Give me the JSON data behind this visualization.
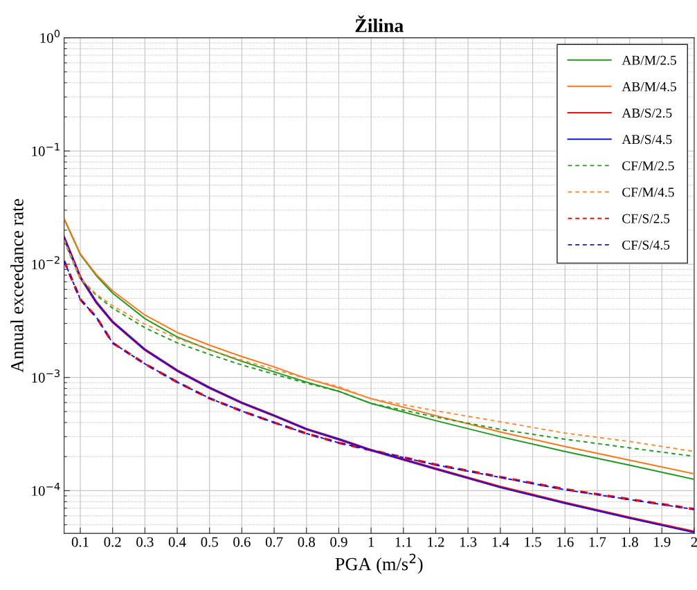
{
  "chart_data": {
    "type": "line",
    "title": "Žilina",
    "xlabel": "PGA (m/s$^{2}$)",
    "ylabel": "Annual exceedance rate",
    "log": "y",
    "grid": true,
    "legend": "top right",
    "xlim": [
      0.05,
      2
    ],
    "ylim": [
      4.2e-05,
      1
    ],
    "xticks": [
      0.1,
      0.2,
      0.3,
      0.4,
      0.5,
      0.6,
      0.7,
      0.8,
      0.9,
      1,
      1.1,
      1.2,
      1.3,
      1.4,
      1.5,
      1.6,
      1.7,
      1.8,
      1.9,
      2
    ],
    "yticks": [
      {
        "value": 0.0001,
        "label": "10$^{−4}$"
      },
      {
        "value": 0.001,
        "label": "10$^{−3}$"
      },
      {
        "value": 0.01,
        "label": "10$^{−2}$"
      },
      {
        "value": 0.1,
        "label": "10$^{−1}$"
      },
      {
        "value": 1,
        "label": "10$^{0}$"
      }
    ],
    "x": [
      0.05,
      0.1,
      0.15,
      0.2,
      0.3,
      0.4,
      0.5,
      0.6,
      0.7,
      0.8,
      0.9,
      1.0,
      1.2,
      1.4,
      1.6,
      1.8,
      2.0
    ],
    "series": [
      {
        "name": "AB/M/2.5",
        "color": "#1f9a1f",
        "line_style": "solid",
        "values": [
          0.025,
          0.0122,
          0.0079,
          0.00556,
          0.00331,
          0.00228,
          0.00176,
          0.00139,
          0.00112,
          0.00091,
          0.000755,
          0.00059,
          0.000416,
          0.0003,
          0.000222,
          0.000168,
          0.000126
        ]
      },
      {
        "name": "AB/M/4.5",
        "color": "#ff7518",
        "line_style": "solid",
        "values": [
          0.0254,
          0.0124,
          0.0081,
          0.00582,
          0.00356,
          0.0025,
          0.00193,
          0.00153,
          0.00124,
          0.00098,
          0.00081,
          0.00065,
          0.00046,
          0.00033,
          0.000246,
          0.000186,
          0.000141
        ]
      },
      {
        "name": "AB/S/2.5",
        "color": "#e81010",
        "line_style": "solid",
        "values": [
          0.0172,
          0.0077,
          0.0046,
          0.0031,
          0.00176,
          0.00115,
          0.00081,
          0.000597,
          0.00046,
          0.00035,
          0.000285,
          0.000228,
          0.000156,
          0.000108,
          7.8e-05,
          5.78e-05,
          4.33e-05
        ]
      },
      {
        "name": "AB/S/4.5",
        "color": "#1010f0",
        "line_style": "solid",
        "values": [
          0.0172,
          0.0077,
          0.0046,
          0.0031,
          0.00176,
          0.00115,
          0.00081,
          0.000597,
          0.00046,
          0.00035,
          0.000285,
          0.000228,
          0.000156,
          0.000107,
          7.75e-05,
          5.73e-05,
          4.28e-05
        ]
      },
      {
        "name": "CF/M/2.5",
        "color": "#1f9a1f",
        "line_style": "dashed",
        "values": [
          0.016,
          0.0074,
          0.0053,
          0.0041,
          0.00275,
          0.00202,
          0.0016,
          0.00129,
          0.00107,
          0.00089,
          0.000755,
          0.00059,
          0.000448,
          0.000348,
          0.000285,
          0.000239,
          0.000201
        ]
      },
      {
        "name": "CF/M/4.5",
        "color": "#ff8c3a",
        "line_style": "dashed",
        "values": [
          0.0164,
          0.00755,
          0.00543,
          0.0043,
          0.00295,
          0.00222,
          0.00176,
          0.00142,
          0.00118,
          0.00098,
          0.00083,
          0.00065,
          0.000508,
          0.000406,
          0.000323,
          0.000272,
          0.000222
        ]
      },
      {
        "name": "CF/S/2.5",
        "color": "#e81010",
        "line_style": "dashed",
        "values": [
          0.0107,
          0.0049,
          0.0034,
          0.00202,
          0.00132,
          0.00091,
          0.000655,
          0.000505,
          0.0004,
          0.00032,
          0.000265,
          0.000228,
          0.00017,
          0.000132,
          0.000103,
          8.4e-05,
          6.88e-05
        ]
      },
      {
        "name": "CF/S/4.5",
        "color": "#1010f0",
        "line_style": "dashed",
        "values": [
          0.0107,
          0.0049,
          0.0034,
          0.00202,
          0.00132,
          0.00091,
          0.000655,
          0.000505,
          0.0004,
          0.00032,
          0.000265,
          0.000228,
          0.000169,
          0.000131,
          0.000102,
          8.35e-05,
          6.83e-05
        ]
      }
    ]
  }
}
